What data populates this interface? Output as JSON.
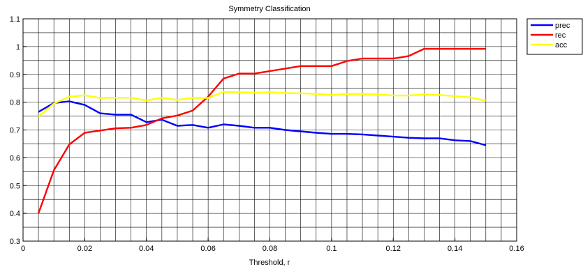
{
  "chart_data": {
    "type": "line",
    "title": "Symmetry Classification",
    "xlabel": "Threshold, r",
    "ylabel": "",
    "xlim": [
      0,
      0.16
    ],
    "ylim": [
      0.3,
      1.1
    ],
    "xticks": [
      0,
      0.02,
      0.04,
      0.06,
      0.08,
      0.1,
      0.12,
      0.14,
      0.16
    ],
    "xtick_labels": [
      "0",
      "0.02",
      "0.04",
      "0.06",
      "0.08",
      "0.1",
      "0.12",
      "0.14",
      "0.16"
    ],
    "yticks": [
      0.3,
      0.4,
      0.5,
      0.6,
      0.7,
      0.8,
      0.9,
      1,
      1.1
    ],
    "ytick_labels": [
      "0.3",
      "0.4",
      "0.5",
      "0.6",
      "0.7",
      "0.8",
      "0.9",
      "1",
      "1.1"
    ],
    "grid": true,
    "legend_position": "outside-top-right",
    "x": [
      0.005,
      0.01,
      0.015,
      0.02,
      0.025,
      0.03,
      0.035,
      0.04,
      0.045,
      0.05,
      0.055,
      0.06,
      0.065,
      0.07,
      0.075,
      0.08,
      0.085,
      0.09,
      0.095,
      0.1,
      0.105,
      0.11,
      0.115,
      0.12,
      0.125,
      0.13,
      0.135,
      0.14,
      0.145,
      0.15
    ],
    "series": [
      {
        "name": "prec",
        "color": "#0000ff",
        "values": [
          0.765,
          0.797,
          0.803,
          0.79,
          0.76,
          0.755,
          0.755,
          0.728,
          0.737,
          0.715,
          0.718,
          0.708,
          0.72,
          0.715,
          0.708,
          0.708,
          0.7,
          0.695,
          0.69,
          0.686,
          0.686,
          0.684,
          0.68,
          0.676,
          0.672,
          0.67,
          0.67,
          0.663,
          0.66,
          0.645
        ]
      },
      {
        "name": "rec",
        "color": "#ff0000",
        "values": [
          0.4,
          0.555,
          0.648,
          0.69,
          0.698,
          0.706,
          0.708,
          0.718,
          0.742,
          0.752,
          0.77,
          0.82,
          0.885,
          0.903,
          0.903,
          0.912,
          0.921,
          0.93,
          0.93,
          0.93,
          0.948,
          0.957,
          0.957,
          0.957,
          0.966,
          0.992,
          0.992,
          0.992,
          0.992,
          0.992
        ]
      },
      {
        "name": "acc",
        "color": "#ffff00",
        "values": [
          0.748,
          0.795,
          0.82,
          0.825,
          0.815,
          0.816,
          0.816,
          0.806,
          0.816,
          0.808,
          0.815,
          0.815,
          0.837,
          0.836,
          0.834,
          0.836,
          0.833,
          0.832,
          0.83,
          0.826,
          0.83,
          0.829,
          0.828,
          0.824,
          0.824,
          0.828,
          0.826,
          0.822,
          0.817,
          0.805
        ]
      }
    ]
  }
}
